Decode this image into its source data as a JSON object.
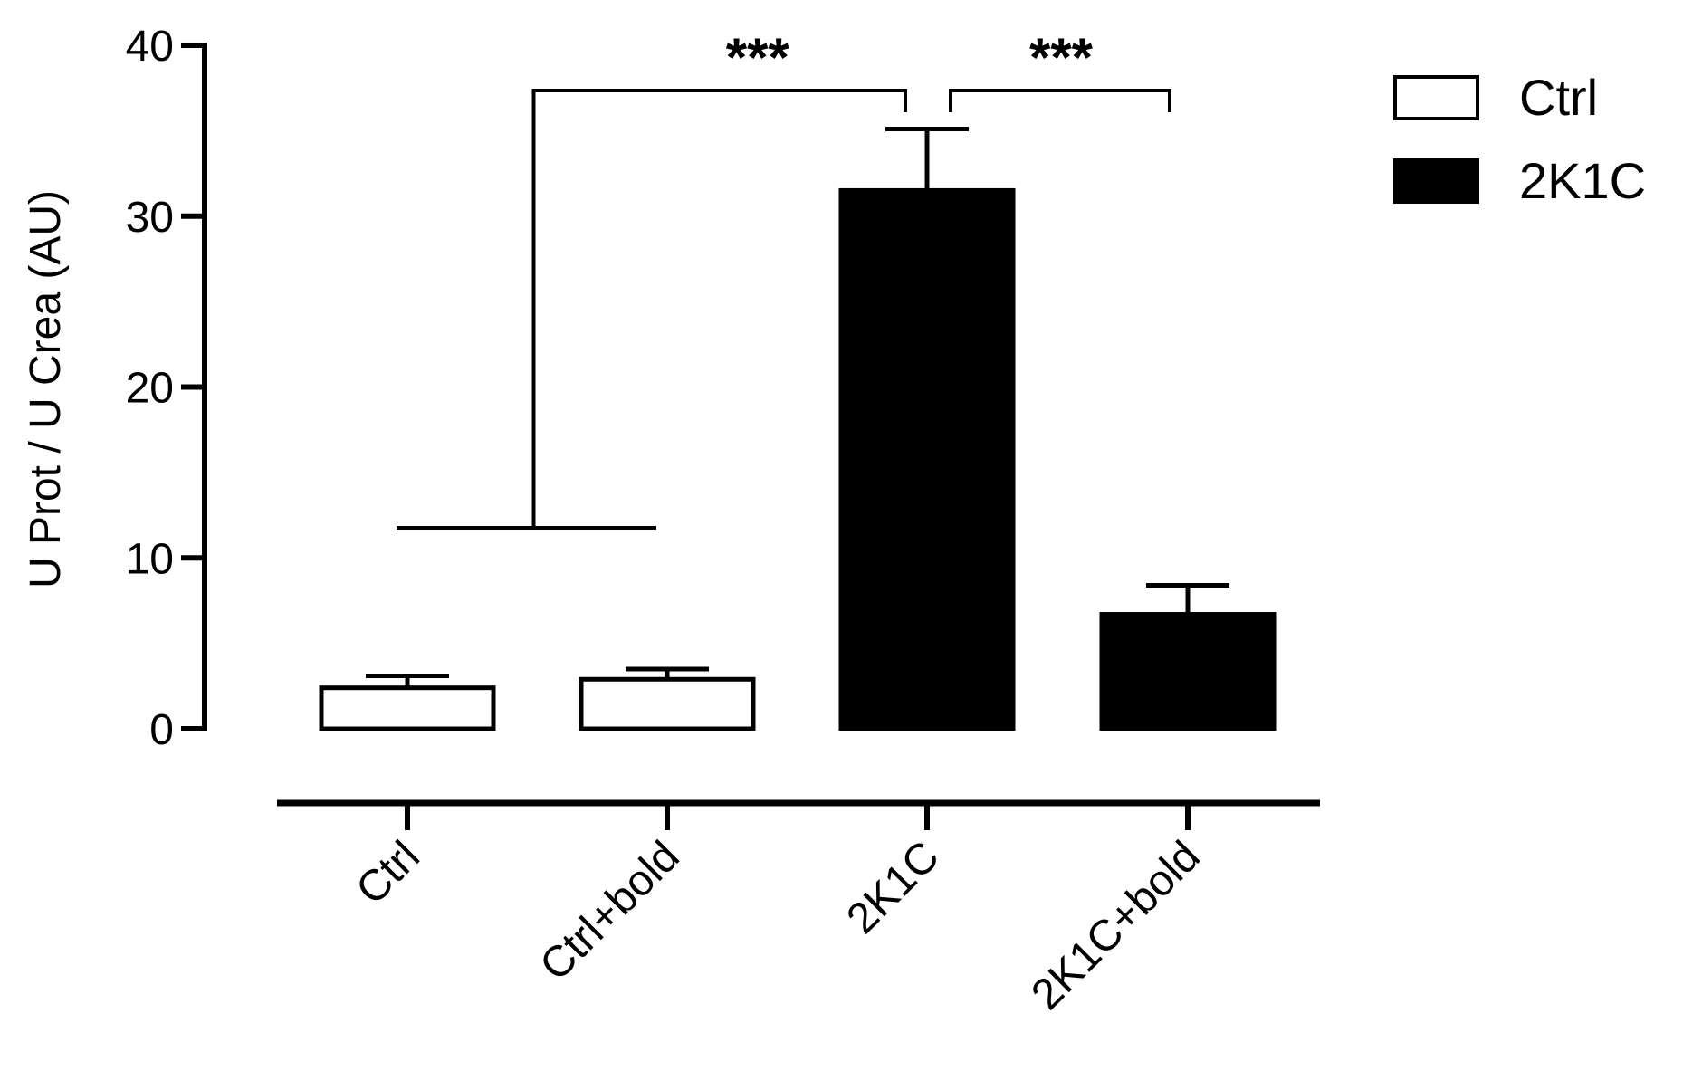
{
  "chart_data": {
    "type": "bar",
    "title": "",
    "ylabel": "U Prot / U Crea (AU)",
    "xlabel": "",
    "ylim": [
      0,
      40
    ],
    "yticks": [
      "0",
      "10",
      "20",
      "30",
      "40"
    ],
    "grid": false,
    "legend_position": "top-right",
    "categories": [
      "Ctrl",
      "Ctrl+bold",
      "2K1C",
      "2K1C+bold"
    ],
    "values": [
      2.4,
      2.9,
      31.5,
      6.7
    ],
    "errors": [
      0.7,
      0.6,
      3.6,
      1.7
    ],
    "groups": [
      "Ctrl",
      "Ctrl",
      "2K1C",
      "2K1C"
    ],
    "legend": [
      {
        "label": "Ctrl",
        "fill": "#ffffff"
      },
      {
        "label": "2K1C",
        "fill": "#000000"
      }
    ],
    "significance": [
      {
        "from": [
          0,
          1
        ],
        "to": [
          2
        ],
        "label": "***"
      },
      {
        "from": [
          2
        ],
        "to": [
          3
        ],
        "label": "***"
      }
    ]
  }
}
